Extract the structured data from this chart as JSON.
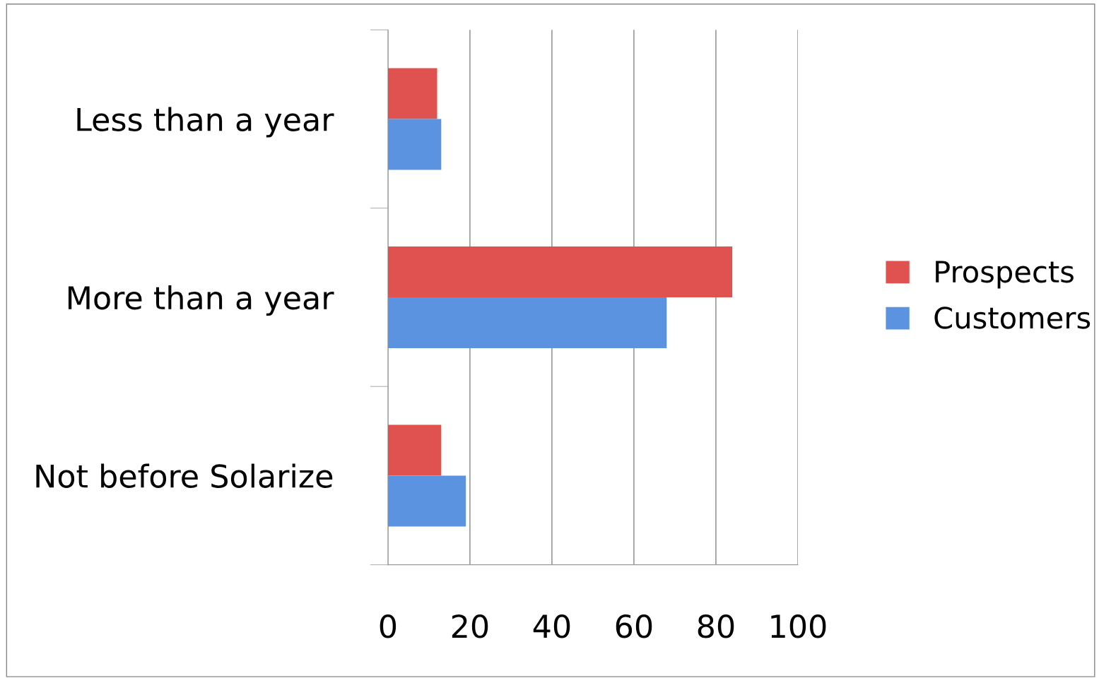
{
  "chart_data": {
    "type": "bar",
    "orientation": "horizontal",
    "categories": [
      "Less than a year",
      "More than a year",
      "Not before Solarize"
    ],
    "series": [
      {
        "name": "Prospects",
        "color": "#e05250",
        "values": [
          12,
          84,
          13
        ]
      },
      {
        "name": "Customers",
        "color": "#5b93e0",
        "values": [
          13,
          68,
          19
        ]
      }
    ],
    "xlim": [
      0,
      100
    ],
    "xticks": [
      0,
      20,
      40,
      60,
      80,
      100
    ],
    "grid": "x",
    "legend": "right"
  }
}
